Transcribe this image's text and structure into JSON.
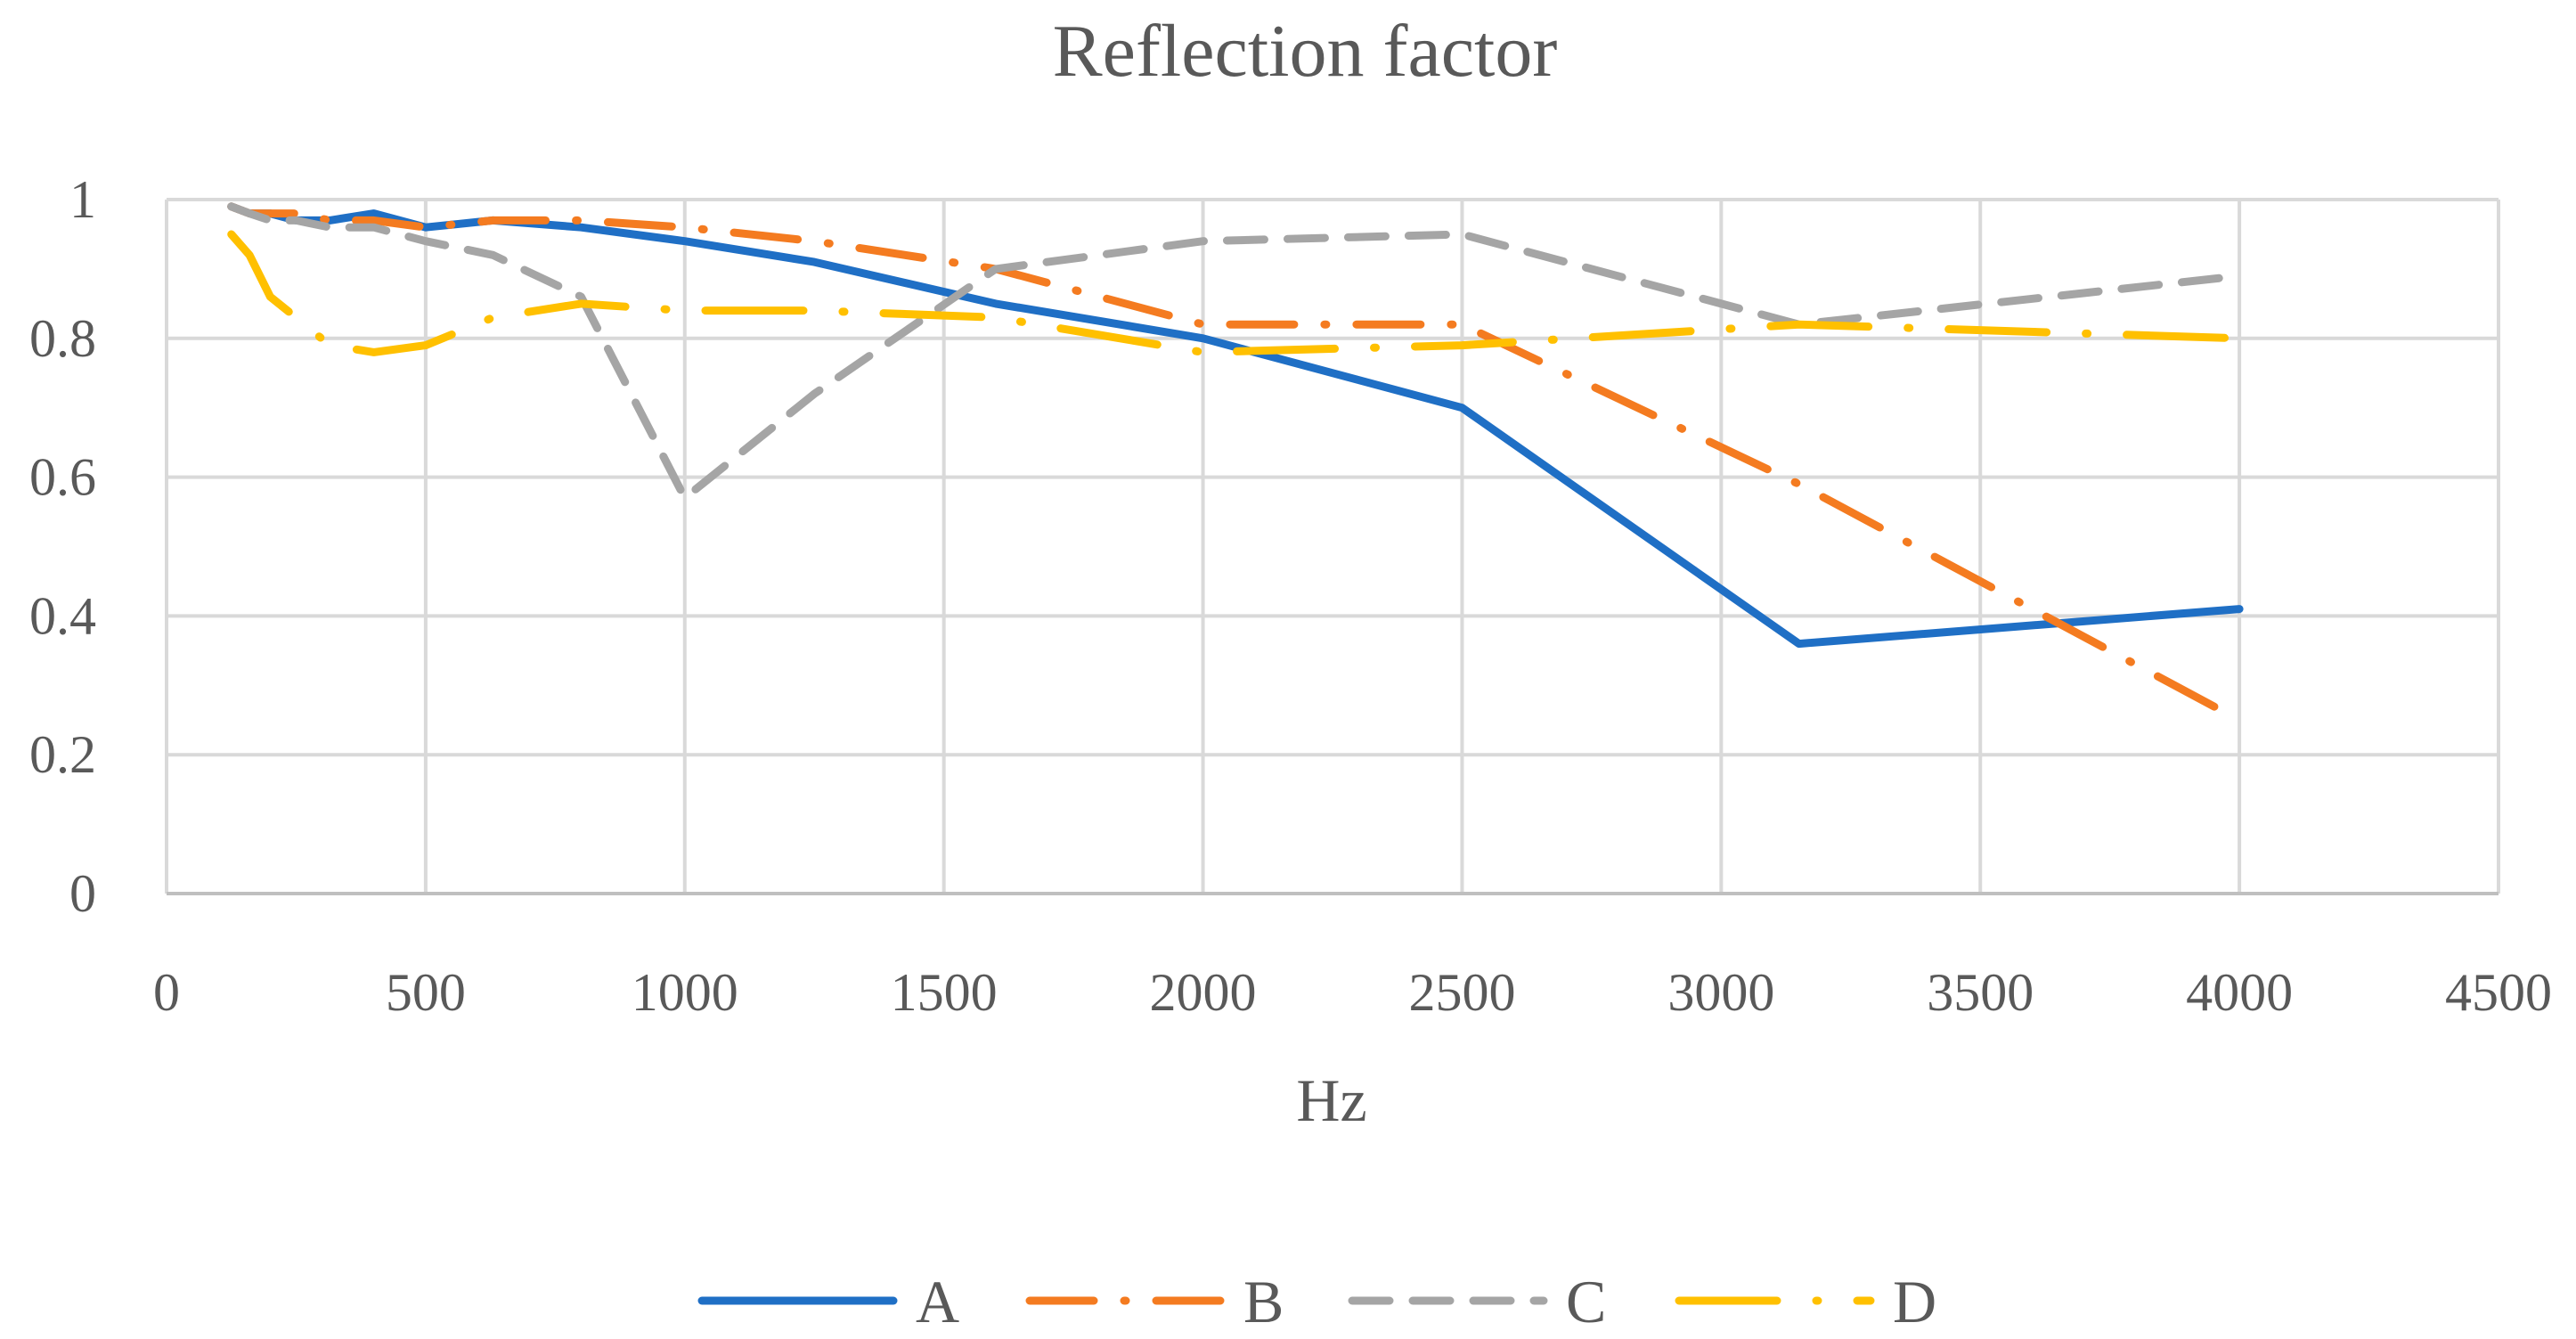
{
  "chart_data": {
    "type": "line",
    "title": "Reflection factor",
    "xlabel": "Hz",
    "ylabel": "",
    "xlim": [
      0,
      4500
    ],
    "ylim": [
      0,
      1
    ],
    "xticks": [
      0,
      500,
      1000,
      1500,
      2000,
      2500,
      3000,
      3500,
      4000,
      4500
    ],
    "yticks": [
      0,
      0.2,
      0.4,
      0.6,
      0.8,
      1
    ],
    "ytick_labels": [
      "0",
      "0.2",
      "0.4",
      "0.6",
      "0.8",
      "1"
    ],
    "grid": true,
    "legend_position": "bottom",
    "series": [
      {
        "name": "A",
        "color": "#1f6fc5",
        "style": "solid",
        "x": [
          125,
          160,
          200,
          250,
          315,
          400,
          500,
          630,
          800,
          1000,
          1250,
          1600,
          2000,
          2500,
          3150,
          4000
        ],
        "y": [
          0.99,
          0.98,
          0.98,
          0.97,
          0.97,
          0.98,
          0.96,
          0.97,
          0.96,
          0.94,
          0.91,
          0.85,
          0.8,
          0.7,
          0.36,
          0.41
        ]
      },
      {
        "name": "B",
        "color": "#f47b20",
        "style": "dash-dot",
        "x": [
          125,
          160,
          200,
          250,
          315,
          400,
          500,
          630,
          800,
          1000,
          1250,
          1600,
          2000,
          2500,
          3150,
          4000
        ],
        "y": [
          0.99,
          0.98,
          0.98,
          0.98,
          0.97,
          0.97,
          0.96,
          0.97,
          0.97,
          0.96,
          0.94,
          0.9,
          0.82,
          0.82,
          0.59,
          0.25
        ]
      },
      {
        "name": "C",
        "color": "#a5a5a5",
        "style": "dashed",
        "x": [
          125,
          160,
          200,
          250,
          315,
          400,
          500,
          630,
          800,
          1000,
          1250,
          1600,
          2000,
          2500,
          3150,
          4000
        ],
        "y": [
          0.99,
          0.98,
          0.97,
          0.97,
          0.96,
          0.96,
          0.94,
          0.92,
          0.86,
          0.57,
          0.72,
          0.9,
          0.94,
          0.95,
          0.82,
          0.89
        ]
      },
      {
        "name": "D",
        "color": "#ffc000",
        "style": "long-dash-dot",
        "x": [
          125,
          160,
          200,
          250,
          315,
          400,
          500,
          630,
          800,
          1000,
          1250,
          1600,
          2000,
          2500,
          3150,
          4000
        ],
        "y": [
          0.95,
          0.92,
          0.86,
          0.83,
          0.79,
          0.78,
          0.79,
          0.83,
          0.85,
          0.84,
          0.84,
          0.83,
          0.78,
          0.79,
          0.82,
          0.8
        ]
      }
    ]
  }
}
